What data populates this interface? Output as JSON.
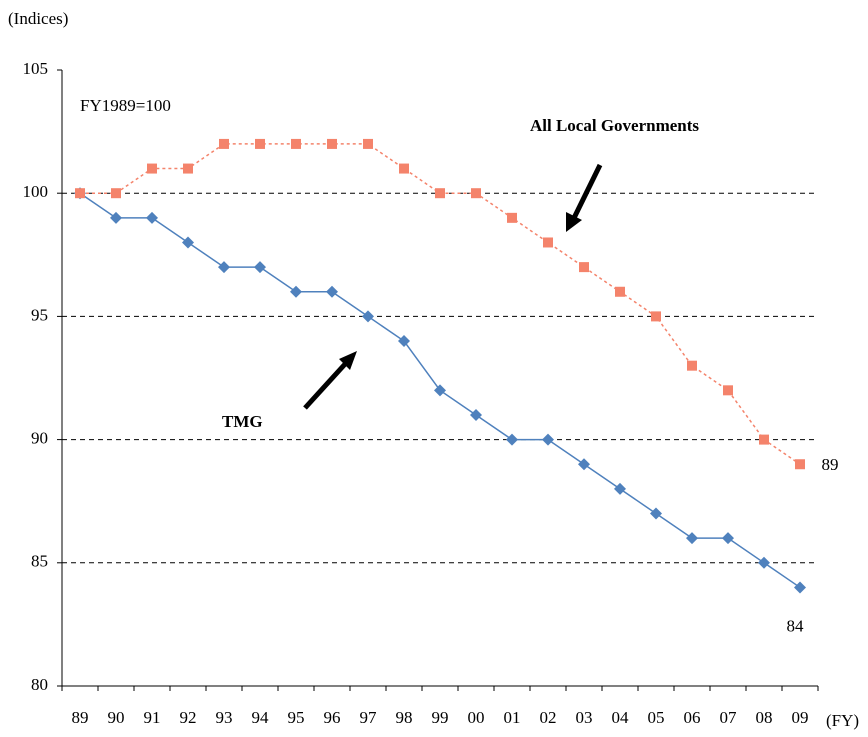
{
  "chart_data": {
    "type": "line",
    "y_axis_label": "(Indices)",
    "x_axis_label": "(FY)",
    "annotation": "FY1989=100",
    "categories": [
      "89",
      "90",
      "91",
      "92",
      "93",
      "94",
      "95",
      "96",
      "97",
      "98",
      "99",
      "00",
      "01",
      "02",
      "03",
      "04",
      "05",
      "06",
      "07",
      "08",
      "09"
    ],
    "series": [
      {
        "name": "TMG",
        "color": "#4f81bd",
        "marker": "diamond",
        "dash": "solid",
        "values": [
          100,
          99,
          99,
          98,
          97,
          97,
          96,
          96,
          95,
          94,
          92,
          91,
          90,
          90,
          89,
          88,
          87,
          86,
          86,
          85,
          84
        ]
      },
      {
        "name": "All Local Governments",
        "color": "#f4836b",
        "marker": "square",
        "dash": "dotted",
        "values": [
          100,
          100,
          101,
          101,
          102,
          102,
          102,
          102,
          102,
          101,
          100,
          100,
          99,
          98,
          97,
          96,
          95,
          93,
          92,
          90,
          89
        ]
      }
    ],
    "ylim": [
      80,
      105
    ],
    "yticks": [
      80,
      85,
      90,
      95,
      100,
      105
    ],
    "grid": true
  }
}
